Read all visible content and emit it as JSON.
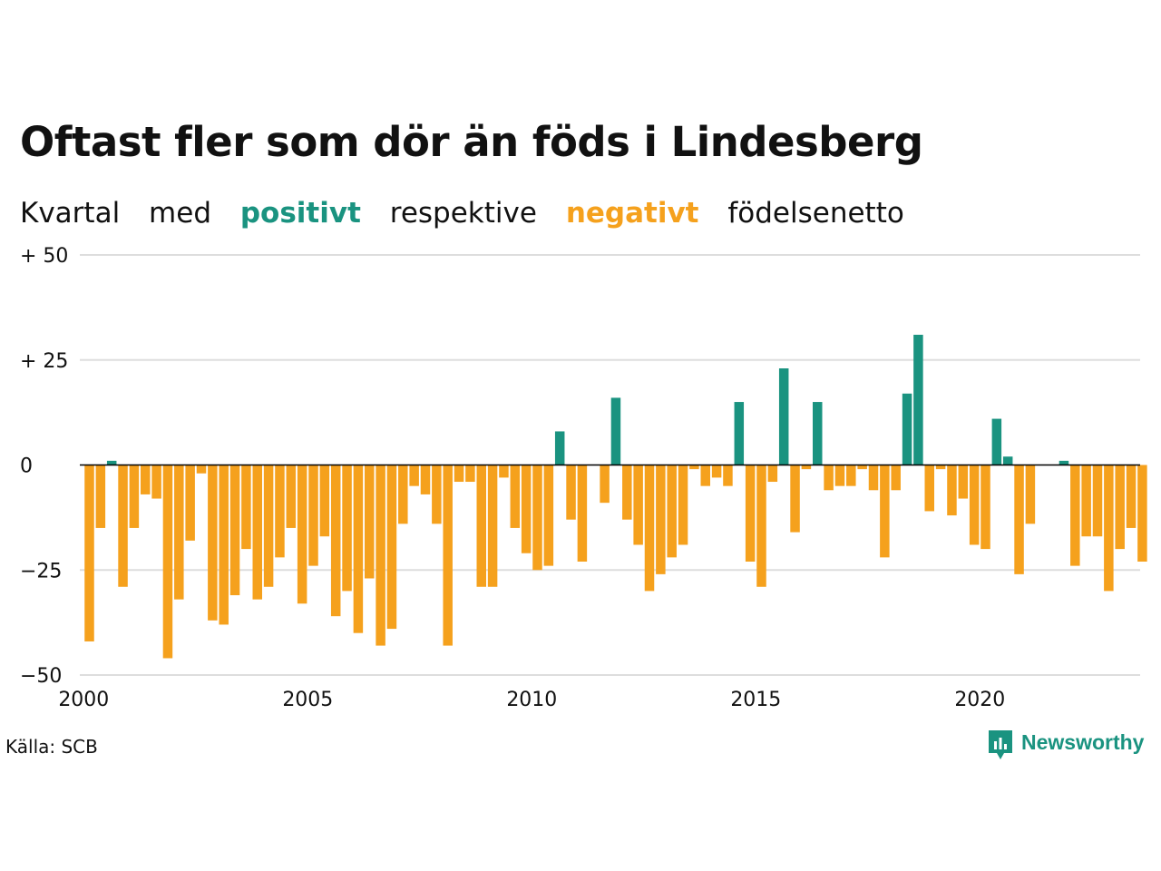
{
  "title": "Oftast fler som dör än föds i Lindesberg",
  "subtitle": {
    "w1": "Kvartal",
    "w2": "med",
    "positive": "positivt",
    "w3": "respektive",
    "negative": "negativt",
    "w4": "födelsenetto"
  },
  "source": "Källa: SCB",
  "brand": {
    "name": "Newsworthy",
    "icon": "newsworthy-logo-icon",
    "color": "#1a9380"
  },
  "colors": {
    "positive": "#1a9380",
    "negative": "#f5a11d",
    "grid": "#dddddd",
    "zero": "#000000"
  },
  "chart_data": {
    "type": "bar",
    "title": "Oftast fler som dör än föds i Lindesberg",
    "xlabel": "",
    "ylabel": "",
    "x_start": "2000-Q1",
    "x_ticks": [
      "2000",
      "2005",
      "2010",
      "2015",
      "2020"
    ],
    "y_ticks": [
      {
        "value": 50,
        "label": "+ 50"
      },
      {
        "value": 25,
        "label": "+ 25"
      },
      {
        "value": 0,
        "label": "0"
      },
      {
        "value": -25,
        "label": "−25"
      },
      {
        "value": -50,
        "label": "−50"
      }
    ],
    "ylim": [
      -50,
      50
    ],
    "grid": true,
    "values": [
      -42,
      -15,
      1,
      -29,
      -15,
      -7,
      -8,
      -46,
      -32,
      -18,
      -2,
      -37,
      -38,
      -31,
      -20,
      -32,
      -29,
      -22,
      -15,
      -33,
      -24,
      -17,
      -36,
      -30,
      -40,
      -27,
      -43,
      -39,
      -14,
      -5,
      -7,
      -14,
      -43,
      -4,
      -4,
      -29,
      -29,
      -3,
      -15,
      -21,
      -25,
      -24,
      8,
      -13,
      -23,
      0,
      -9,
      16,
      -13,
      -19,
      -30,
      -26,
      -22,
      -19,
      -1,
      -5,
      -3,
      -5,
      15,
      -23,
      -29,
      -4,
      23,
      -16,
      -1,
      15,
      -6,
      -5,
      -5,
      -1,
      -6,
      -22,
      -6,
      17,
      31,
      -11,
      -1,
      -12,
      -8,
      -19,
      -20,
      11,
      2,
      -26,
      -14,
      0,
      0,
      1,
      -24,
      -17,
      -17,
      -30,
      -20,
      -15,
      -23
    ]
  }
}
